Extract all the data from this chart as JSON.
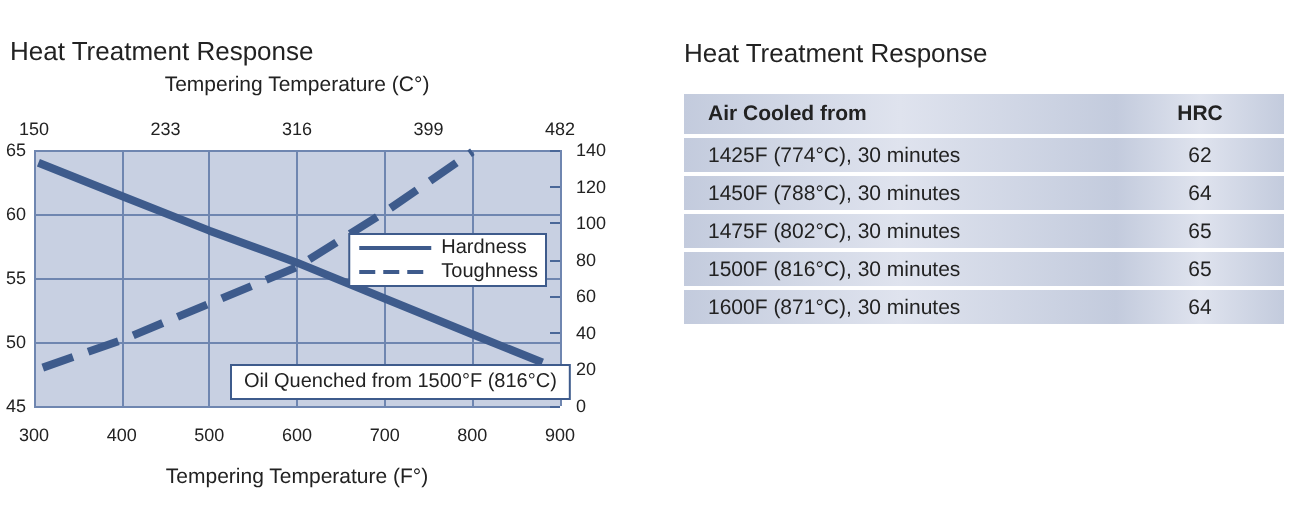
{
  "chart_data": [
    {
      "type": "line",
      "title": "Heat Treatment Response",
      "x2label": "Tempering Temperature (C°)",
      "xlabel": "Tempering Temperature (F°)",
      "xlim": [
        300,
        900
      ],
      "xticks": [
        300,
        400,
        500,
        600,
        700,
        800,
        900
      ],
      "x2lim": [
        150,
        482
      ],
      "x2ticks": [
        150,
        233,
        316,
        399,
        482
      ],
      "ylim": [
        45,
        65
      ],
      "yticks": [
        45,
        50,
        55,
        60,
        65
      ],
      "y2lim": [
        0,
        140
      ],
      "y2ticks": [
        0,
        20,
        40,
        60,
        80,
        100,
        120,
        140
      ],
      "grid": true,
      "legend": "right",
      "marker": "none",
      "series": [
        {
          "name": "Hardness",
          "color": "#3e5b8c",
          "line_style": "solid",
          "x": [
            305,
            400,
            500,
            600,
            700,
            800,
            880
          ],
          "values": [
            64,
            61.4,
            58.7,
            56.2,
            53.4,
            50.6,
            48.4
          ]
        },
        {
          "name": "Toughness",
          "color": "#3e5b8c",
          "line_style": "dashed",
          "axis": "y2",
          "x": [
            310,
            400,
            500,
            600,
            700,
            800
          ],
          "values": [
            21,
            36,
            56,
            76,
            106,
            139
          ]
        }
      ],
      "annotations": [
        "Oil Quenched from 1500°F (816°C)"
      ]
    },
    {
      "type": "other",
      "title": "Heat Treatment Response",
      "xlabel": "Air Cooled from",
      "ylabel": "HRC",
      "categories": [
        "1425F (774°C), 30 minutes",
        "1450F (788°C), 30 minutes",
        "1475F (802°C), 30 minutes",
        "1500F (816°C), 30 minutes",
        "1600F (871°C), 30 minutes"
      ],
      "values": [
        62,
        64,
        65,
        65,
        64
      ],
      "data_labels": true
    }
  ]
}
